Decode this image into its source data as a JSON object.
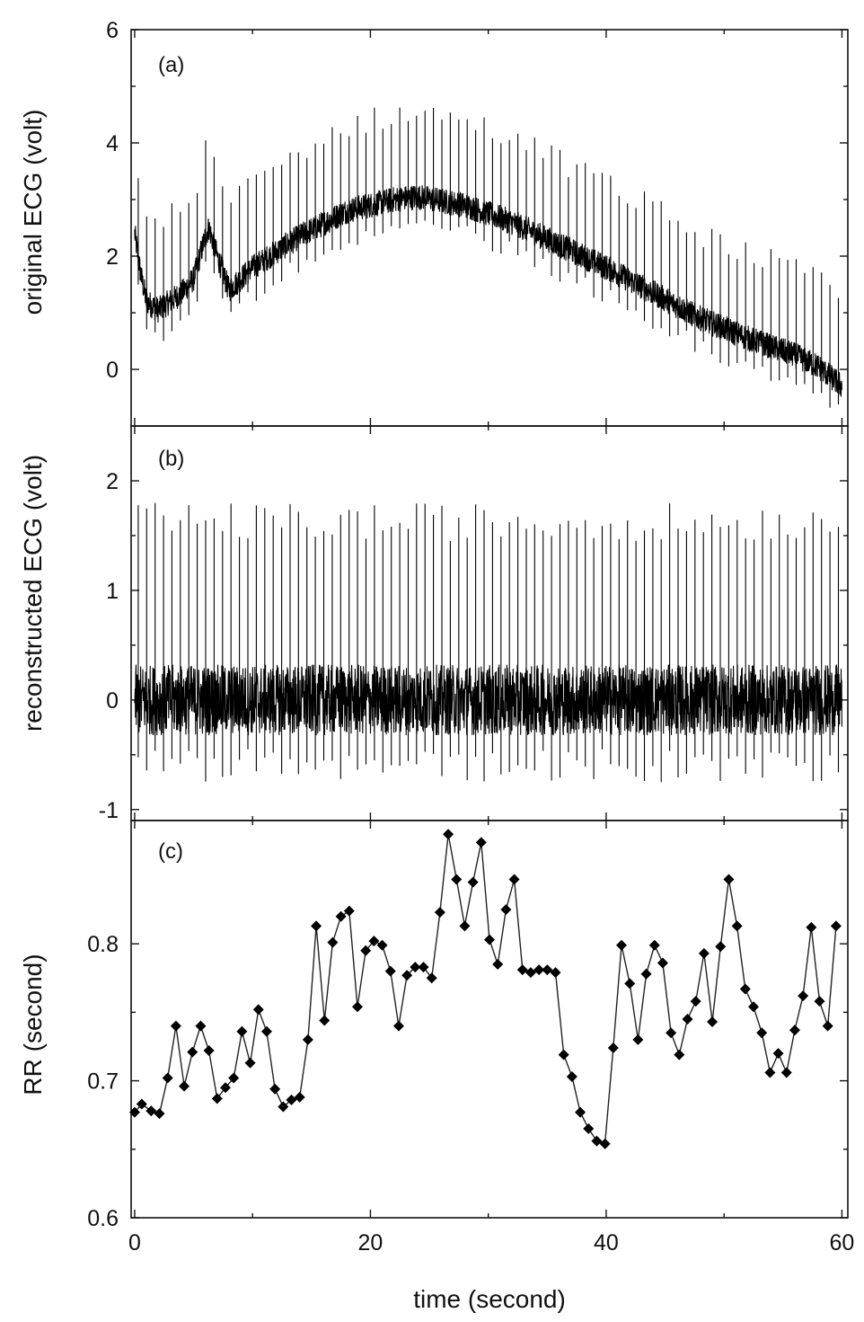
{
  "chart_data": [
    {
      "id": "a",
      "type": "line",
      "panel_label": "(a)",
      "ylabel": "original ECG (volt)",
      "ylim": [
        -1,
        6
      ],
      "yticks": [
        0,
        2,
        4,
        6
      ],
      "xlim": [
        -0.3,
        60.5
      ],
      "duration": 60,
      "grid": false,
      "heart_beats": 84,
      "r_peak_amplitude": 1.5,
      "noise_band_width": 0.45,
      "baseline": {
        "x": [
          0,
          0.5,
          1,
          2,
          4,
          5,
          6,
          6.3,
          7,
          8,
          10,
          14,
          18,
          22,
          24,
          28,
          32,
          36,
          40,
          44,
          48,
          52,
          56,
          58,
          60
        ],
        "y": [
          2.4,
          1.7,
          1.2,
          1.05,
          1.35,
          1.6,
          2.35,
          2.5,
          2.0,
          1.4,
          1.8,
          2.35,
          2.8,
          3.0,
          3.05,
          2.9,
          2.6,
          2.2,
          1.8,
          1.35,
          0.9,
          0.55,
          0.25,
          0.05,
          -0.3
        ]
      }
    },
    {
      "id": "b",
      "type": "line",
      "panel_label": "(b)",
      "ylabel": "reconstructed ECG (volt)",
      "ylim": [
        -1.1,
        2.5
      ],
      "yticks": [
        -1,
        0,
        1,
        2
      ],
      "xlim": [
        -0.3,
        60.5
      ],
      "duration": 60,
      "grid": false,
      "heart_beats": 84,
      "r_peak_range": [
        1.45,
        1.8
      ],
      "s_wave_range": [
        -0.45,
        -0.75
      ],
      "noise_band": [
        -0.32,
        0.32
      ]
    },
    {
      "id": "c",
      "type": "line",
      "panel_label": "(c)",
      "ylabel": "RR (second)",
      "xlabel": "time (second)",
      "ylim": [
        0.6,
        0.89
      ],
      "yticks": [
        0.6,
        0.7,
        0.8
      ],
      "ytick_labels": [
        "0.6",
        "0.7",
        "0.8"
      ],
      "xlim": [
        -0.3,
        60.5
      ],
      "xticks": [
        0,
        20,
        40,
        60
      ],
      "grid": false,
      "marker": "diamond",
      "x": [
        0,
        0.6,
        1.4,
        2.1,
        2.8,
        3.5,
        4.2,
        4.9,
        5.6,
        6.3,
        7.0,
        7.7,
        8.4,
        9.1,
        9.8,
        10.5,
        11.2,
        11.9,
        12.6,
        13.3,
        14.0,
        14.7,
        15.4,
        16.1,
        16.8,
        17.5,
        18.2,
        18.9,
        19.6,
        20.3,
        21.0,
        21.7,
        22.4,
        23.1,
        23.8,
        24.5,
        25.2,
        25.9,
        26.6,
        27.3,
        28.0,
        28.7,
        29.4,
        30.1,
        30.8,
        31.5,
        32.2,
        32.9,
        33.6,
        34.3,
        35.0,
        35.7,
        36.4,
        37.1,
        37.8,
        38.5,
        39.2,
        39.9,
        40.6,
        41.3,
        42.0,
        42.7,
        43.4,
        44.1,
        44.8,
        45.5,
        46.2,
        46.9,
        47.6,
        48.3,
        49.0,
        49.7,
        50.4,
        51.1,
        51.8,
        52.5,
        53.2,
        53.9,
        54.6,
        55.3,
        56.0,
        56.7,
        57.4,
        58.1,
        58.8,
        59.5
      ],
      "y": [
        0.677,
        0.683,
        0.678,
        0.676,
        0.702,
        0.74,
        0.696,
        0.721,
        0.74,
        0.722,
        0.687,
        0.695,
        0.702,
        0.736,
        0.713,
        0.752,
        0.736,
        0.694,
        0.681,
        0.686,
        0.688,
        0.73,
        0.813,
        0.744,
        0.801,
        0.82,
        0.824,
        0.754,
        0.795,
        0.802,
        0.799,
        0.78,
        0.74,
        0.777,
        0.783,
        0.783,
        0.775,
        0.823,
        0.88,
        0.847,
        0.813,
        0.845,
        0.874,
        0.803,
        0.785,
        0.825,
        0.847,
        0.781,
        0.779,
        0.781,
        0.781,
        0.779,
        0.719,
        0.703,
        0.677,
        0.665,
        0.656,
        0.654,
        0.724,
        0.799,
        0.771,
        0.73,
        0.778,
        0.799,
        0.786,
        0.735,
        0.719,
        0.745,
        0.758,
        0.793,
        0.743,
        0.798,
        0.847,
        0.813,
        0.767,
        0.754,
        0.735,
        0.706,
        0.72,
        0.706,
        0.737,
        0.762,
        0.812,
        0.758,
        0.74,
        0.813
      ]
    }
  ]
}
